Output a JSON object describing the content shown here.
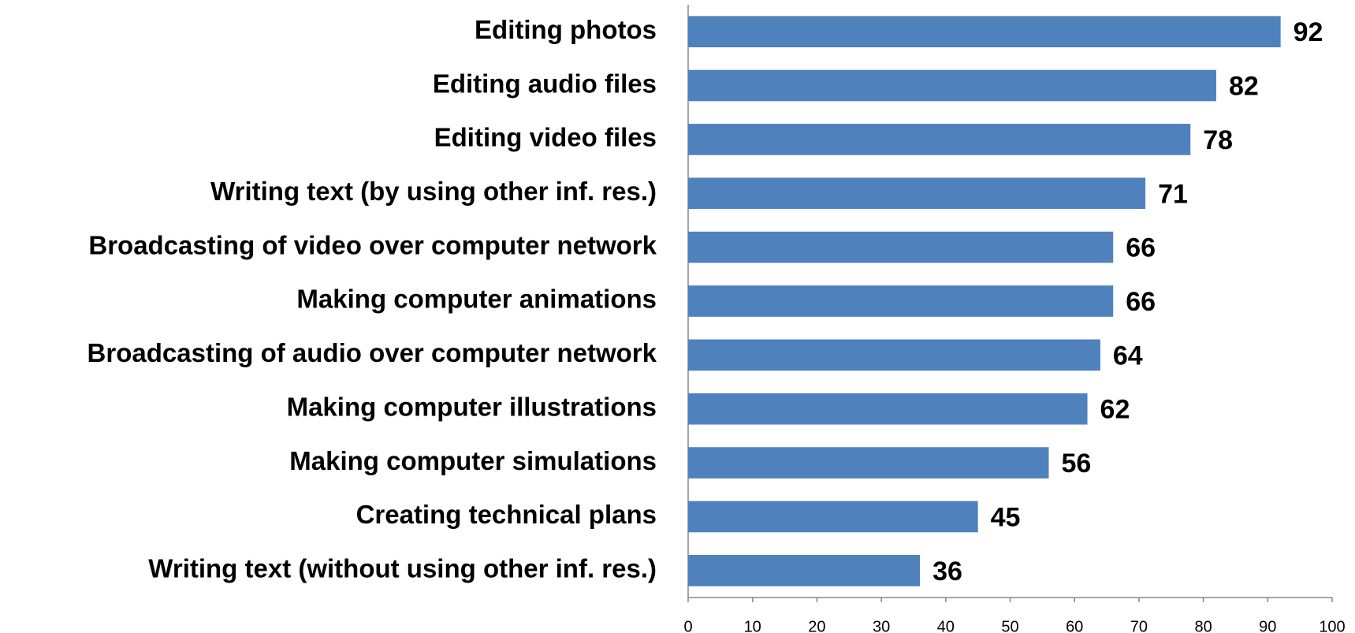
{
  "chart_data": {
    "type": "bar",
    "orientation": "horizontal",
    "categories": [
      "Editing photos",
      "Editing audio files",
      "Editing video files",
      "Writing text (by using other inf. res.)",
      "Broadcasting of video over computer network",
      "Making computer animations",
      "Broadcasting of audio over computer network",
      "Making computer illustrations",
      "Making computer simulations",
      "Creating technical plans",
      "Writing text (without using other inf. res.)"
    ],
    "values": [
      92,
      82,
      78,
      71,
      66,
      66,
      64,
      62,
      56,
      45,
      36
    ],
    "color": "#4f81bd",
    "xlim": [
      0,
      100
    ],
    "xticks": [
      0,
      10,
      20,
      30,
      40,
      50,
      60,
      70,
      80,
      90,
      100
    ],
    "grid": false
  }
}
